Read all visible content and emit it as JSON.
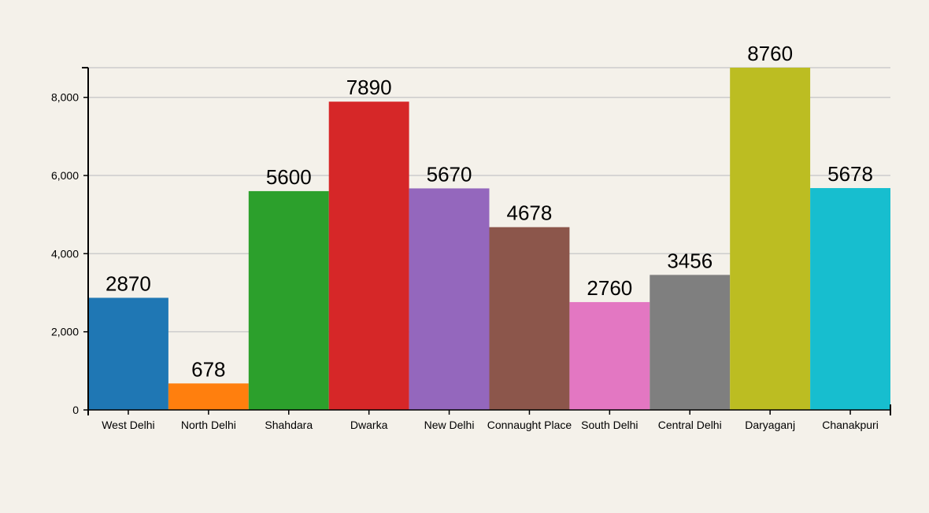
{
  "chart_data": {
    "type": "bar",
    "title": "",
    "xlabel": "",
    "ylabel": "",
    "categories": [
      "West Delhi",
      "North Delhi",
      "Shahdara",
      "Dwarka",
      "New Delhi",
      "Connaught Place",
      "South Delhi",
      "Central Delhi",
      "Daryaganj",
      "Chanakpuri"
    ],
    "values": [
      2870,
      678,
      5600,
      7890,
      5670,
      4678,
      2760,
      3456,
      8760,
      5678
    ],
    "colors": [
      "#1f77b4",
      "#ff7f0e",
      "#2ca02c",
      "#d62728",
      "#9467bd",
      "#8c564b",
      "#e377c2",
      "#7f7f7f",
      "#bcbd22",
      "#17becf"
    ],
    "ylim": [
      0,
      8760
    ],
    "yticks": [
      0,
      2000,
      4000,
      6000,
      8000
    ],
    "ytick_labels": [
      "0",
      "2,000",
      "4,000",
      "6,000",
      "8,000"
    ],
    "grid": true,
    "data_labels": true
  }
}
